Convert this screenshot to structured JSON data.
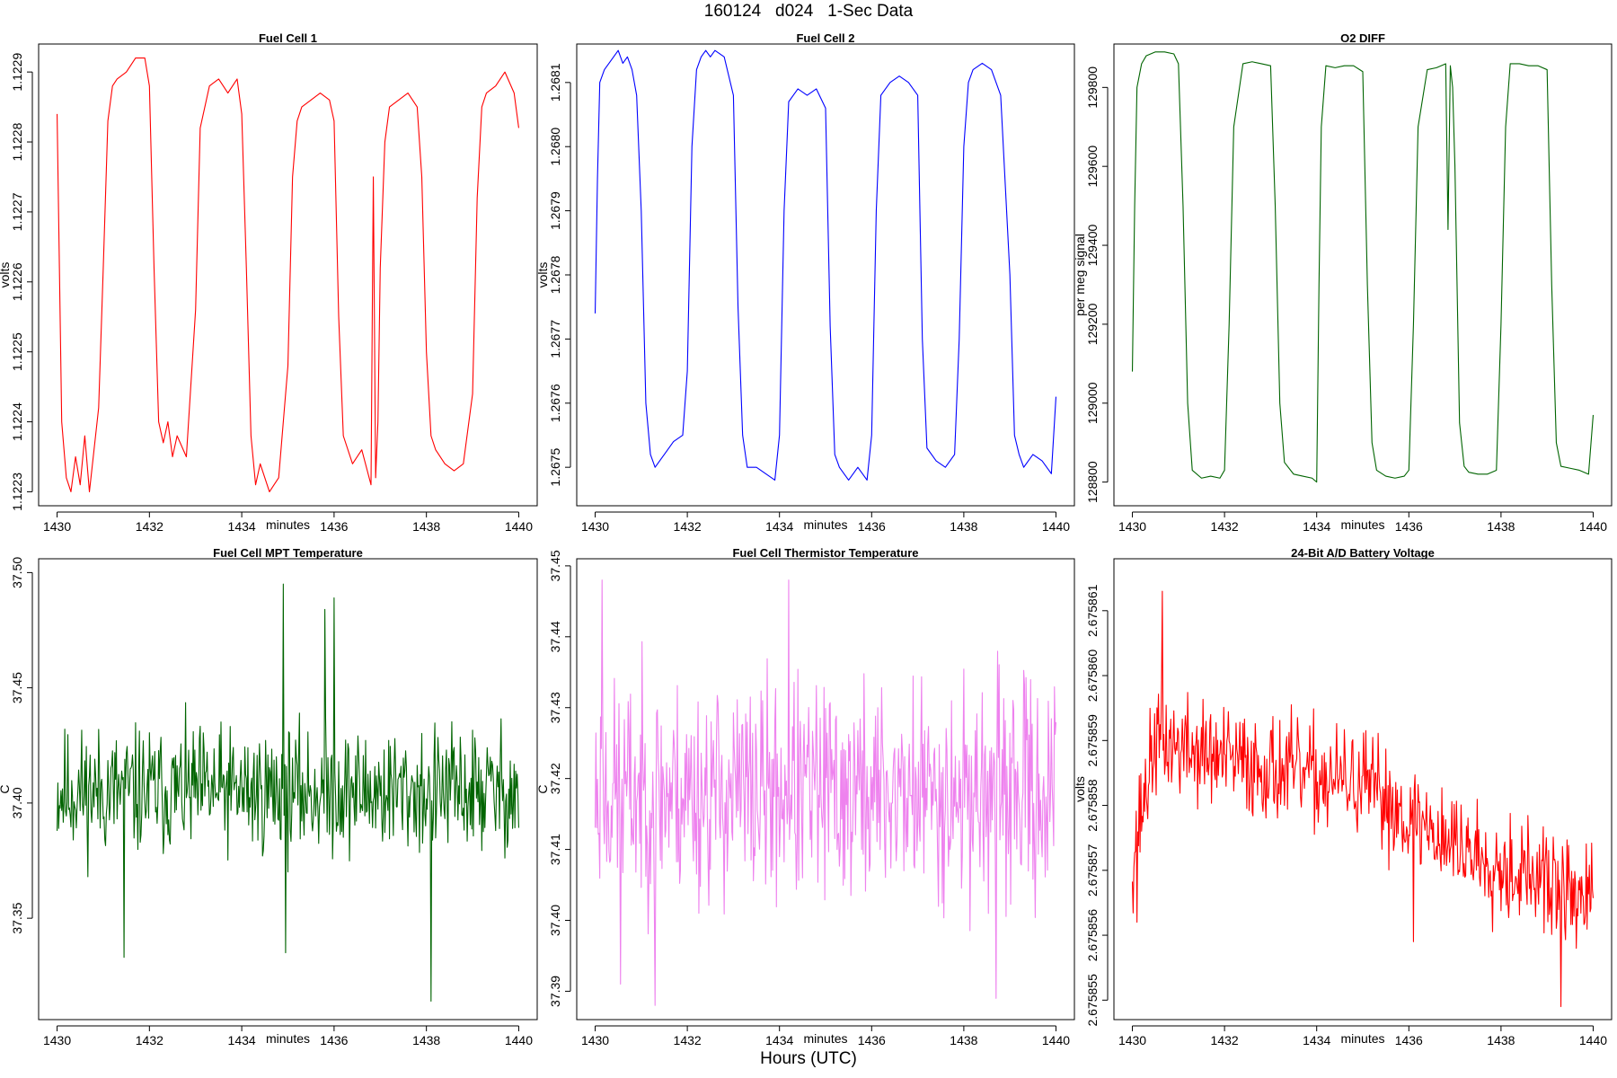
{
  "page": {
    "title": "160124   d024   1-Sec Data",
    "footer": "Hours (UTC)"
  },
  "chart_data": [
    {
      "type": "line",
      "title": "Fuel Cell 1",
      "xlabel": "minutes",
      "ylabel": "volts",
      "color": "#ff0000",
      "xlim": [
        1429.6,
        1440.4
      ],
      "ylim": [
        1.12228,
        1.12294
      ],
      "xticks": [
        1430,
        1432,
        1434,
        1436,
        1438,
        1440
      ],
      "xtick_labels": [
        "1430",
        "1432",
        "1434",
        "1436",
        "1438",
        "1440"
      ],
      "yticks": [
        1.1223,
        1.1224,
        1.1225,
        1.1226,
        1.1227,
        1.1228,
        1.1229
      ],
      "ytick_labels": [
        "1.1223",
        "1.1224",
        "1.1225",
        "1.1226",
        "1.1227",
        "1.1228",
        "1.1229"
      ],
      "series": [
        {
          "name": "Fuel Cell 1",
          "x": [
            1430.0,
            1430.05,
            1430.1,
            1430.2,
            1430.3,
            1430.4,
            1430.5,
            1430.6,
            1430.7,
            1430.8,
            1430.9,
            1431.0,
            1431.1,
            1431.2,
            1431.3,
            1431.5,
            1431.7,
            1431.9,
            1432.0,
            1432.1,
            1432.2,
            1432.3,
            1432.4,
            1432.5,
            1432.6,
            1432.8,
            1433.0,
            1433.1,
            1433.2,
            1433.3,
            1433.5,
            1433.7,
            1433.9,
            1434.0,
            1434.1,
            1434.2,
            1434.3,
            1434.4,
            1434.6,
            1434.8,
            1435.0,
            1435.1,
            1435.2,
            1435.3,
            1435.5,
            1435.7,
            1435.9,
            1436.0,
            1436.1,
            1436.2,
            1436.4,
            1436.6,
            1436.8,
            1436.85,
            1436.9,
            1436.95,
            1437.0,
            1437.1,
            1437.2,
            1437.4,
            1437.6,
            1437.8,
            1437.9,
            1438.0,
            1438.1,
            1438.2,
            1438.4,
            1438.6,
            1438.8,
            1439.0,
            1439.1,
            1439.2,
            1439.3,
            1439.5,
            1439.7,
            1439.9,
            1440.0
          ],
          "y": [
            1.12284,
            1.12262,
            1.1224,
            1.12232,
            1.1223,
            1.12235,
            1.12231,
            1.12238,
            1.1223,
            1.12236,
            1.12242,
            1.12262,
            1.12283,
            1.12288,
            1.12289,
            1.1229,
            1.12292,
            1.12292,
            1.12288,
            1.12262,
            1.1224,
            1.12237,
            1.1224,
            1.12235,
            1.12238,
            1.12235,
            1.12256,
            1.12282,
            1.12285,
            1.12288,
            1.12289,
            1.12287,
            1.12289,
            1.12284,
            1.12262,
            1.12238,
            1.12231,
            1.12234,
            1.1223,
            1.12232,
            1.12248,
            1.12275,
            1.12283,
            1.12285,
            1.12286,
            1.12287,
            1.12286,
            1.12283,
            1.12255,
            1.12238,
            1.12234,
            1.12236,
            1.12231,
            1.12275,
            1.12232,
            1.1224,
            1.12262,
            1.1228,
            1.12285,
            1.12286,
            1.12287,
            1.12285,
            1.12275,
            1.1225,
            1.12238,
            1.12236,
            1.12234,
            1.12233,
            1.12234,
            1.12244,
            1.12272,
            1.12285,
            1.12287,
            1.12288,
            1.1229,
            1.12287,
            1.12282
          ]
        }
      ]
    },
    {
      "type": "line",
      "title": "Fuel Cell 2",
      "xlabel": "minutes",
      "ylabel": "volts",
      "color": "#0000ff",
      "xlim": [
        1429.6,
        1440.4
      ],
      "ylim": [
        1.26744,
        1.26816
      ],
      "xticks": [
        1430,
        1432,
        1434,
        1436,
        1438,
        1440
      ],
      "xtick_labels": [
        "1430",
        "1432",
        "1434",
        "1436",
        "1438",
        "1440"
      ],
      "yticks": [
        1.2675,
        1.2676,
        1.2677,
        1.2678,
        1.2679,
        1.268,
        1.2681
      ],
      "ytick_labels": [
        "1.2675",
        "1.2676",
        "1.2677",
        "1.2678",
        "1.2679",
        "1.2680",
        "1.2681"
      ],
      "series": [
        {
          "name": "Fuel Cell 2",
          "x": [
            1430.0,
            1430.05,
            1430.1,
            1430.2,
            1430.3,
            1430.4,
            1430.5,
            1430.6,
            1430.7,
            1430.8,
            1430.9,
            1431.0,
            1431.1,
            1431.2,
            1431.3,
            1431.5,
            1431.7,
            1431.9,
            1432.0,
            1432.1,
            1432.2,
            1432.3,
            1432.4,
            1432.5,
            1432.6,
            1432.8,
            1433.0,
            1433.1,
            1433.2,
            1433.3,
            1433.5,
            1433.7,
            1433.9,
            1434.0,
            1434.1,
            1434.2,
            1434.3,
            1434.4,
            1434.6,
            1434.8,
            1435.0,
            1435.1,
            1435.2,
            1435.3,
            1435.5,
            1435.7,
            1435.9,
            1436.0,
            1436.1,
            1436.2,
            1436.4,
            1436.6,
            1436.8,
            1437.0,
            1437.1,
            1437.2,
            1437.4,
            1437.6,
            1437.8,
            1437.9,
            1438.0,
            1438.1,
            1438.2,
            1438.4,
            1438.6,
            1438.8,
            1439.0,
            1439.1,
            1439.2,
            1439.3,
            1439.5,
            1439.7,
            1439.9,
            1440.0
          ],
          "y": [
            1.26774,
            1.26795,
            1.2681,
            1.26812,
            1.26813,
            1.26814,
            1.26815,
            1.26813,
            1.26814,
            1.26812,
            1.26808,
            1.2679,
            1.2676,
            1.26752,
            1.2675,
            1.26752,
            1.26754,
            1.26755,
            1.26765,
            1.268,
            1.26812,
            1.26814,
            1.26815,
            1.26814,
            1.26815,
            1.26814,
            1.26808,
            1.26775,
            1.26755,
            1.2675,
            1.2675,
            1.26749,
            1.26748,
            1.26755,
            1.2679,
            1.26807,
            1.26808,
            1.26809,
            1.26808,
            1.26809,
            1.26806,
            1.26772,
            1.26752,
            1.2675,
            1.26748,
            1.2675,
            1.26748,
            1.26755,
            1.2679,
            1.26808,
            1.2681,
            1.26811,
            1.2681,
            1.26808,
            1.2677,
            1.26753,
            1.26751,
            1.2675,
            1.26752,
            1.2677,
            1.268,
            1.2681,
            1.26812,
            1.26813,
            1.26812,
            1.26808,
            1.2678,
            1.26755,
            1.26752,
            1.2675,
            1.26752,
            1.26751,
            1.26749,
            1.26761
          ]
        }
      ]
    },
    {
      "type": "line",
      "title": "O2 DIFF",
      "xlabel": "minutes",
      "ylabel": "per meg signal",
      "color": "#006400",
      "xlim": [
        1429.6,
        1440.4
      ],
      "ylim": [
        128740,
        129910
      ],
      "xticks": [
        1430,
        1432,
        1434,
        1436,
        1438,
        1440
      ],
      "xtick_labels": [
        "1430",
        "1432",
        "1434",
        "1436",
        "1438",
        "1440"
      ],
      "yticks": [
        128800,
        129000,
        129200,
        129400,
        129600,
        129800
      ],
      "ytick_labels": [
        "128800",
        "129000",
        "129200",
        "129400",
        "129600",
        "129800"
      ],
      "series": [
        {
          "name": "O2 DIFF",
          "x": [
            1430.0,
            1430.05,
            1430.1,
            1430.2,
            1430.3,
            1430.5,
            1430.7,
            1430.9,
            1431.0,
            1431.1,
            1431.2,
            1431.3,
            1431.5,
            1431.7,
            1431.9,
            1432.0,
            1432.1,
            1432.2,
            1432.4,
            1432.6,
            1432.8,
            1433.0,
            1433.1,
            1433.2,
            1433.3,
            1433.5,
            1433.7,
            1433.9,
            1434.0,
            1434.05,
            1434.1,
            1434.2,
            1434.4,
            1434.6,
            1434.8,
            1435.0,
            1435.1,
            1435.2,
            1435.3,
            1435.5,
            1435.7,
            1435.9,
            1436.0,
            1436.1,
            1436.2,
            1436.4,
            1436.6,
            1436.8,
            1436.85,
            1436.9,
            1436.95,
            1437.0,
            1437.1,
            1437.2,
            1437.3,
            1437.5,
            1437.7,
            1437.9,
            1438.0,
            1438.1,
            1438.2,
            1438.4,
            1438.6,
            1438.8,
            1439.0,
            1439.1,
            1439.2,
            1439.3,
            1439.5,
            1439.7,
            1439.9,
            1440.0
          ],
          "y": [
            129080,
            129500,
            129800,
            129860,
            129880,
            129890,
            129890,
            129885,
            129860,
            129500,
            129000,
            128830,
            128810,
            128815,
            128810,
            128830,
            129200,
            129700,
            129860,
            129865,
            129860,
            129855,
            129500,
            129000,
            128850,
            128820,
            128815,
            128810,
            128800,
            129300,
            129700,
            129855,
            129850,
            129855,
            129855,
            129840,
            129300,
            128900,
            128830,
            128815,
            128810,
            128815,
            128830,
            129200,
            129700,
            129845,
            129850,
            129860,
            129440,
            129855,
            129800,
            129600,
            128950,
            128840,
            128825,
            128820,
            128820,
            128830,
            129200,
            129700,
            129860,
            129860,
            129855,
            129855,
            129845,
            129300,
            128900,
            128840,
            128835,
            128830,
            128820,
            128970
          ]
        }
      ]
    },
    {
      "type": "line",
      "title": "Fuel Cell MPT Temperature",
      "xlabel": "minutes",
      "ylabel": "C",
      "color": "#006400",
      "xlim": [
        1429.6,
        1440.4
      ],
      "ylim": [
        37.306,
        37.506
      ],
      "xticks": [
        1430,
        1432,
        1434,
        1436,
        1438,
        1440
      ],
      "xtick_labels": [
        "1430",
        "1432",
        "1434",
        "1436",
        "1438",
        "1440"
      ],
      "yticks": [
        37.35,
        37.4,
        37.45,
        37.5
      ],
      "ytick_labels": [
        "37.35",
        "37.40",
        "37.45",
        "37.50"
      ],
      "series": [
        {
          "name": "Fuel Cell MPT Temperature",
          "generate": "noise",
          "base": 37.405,
          "amp": 0.03,
          "seed": 11,
          "spikes": [
            [
              1431.45,
              37.333
            ],
            [
              1434.9,
              37.495
            ],
            [
              1435.8,
              37.484
            ],
            [
              1436.0,
              37.489
            ],
            [
              1438.1,
              37.314
            ],
            [
              1434.95,
              37.335
            ]
          ]
        }
      ]
    },
    {
      "type": "line",
      "title": "Fuel Cell Thermistor Temperature",
      "xlabel": "minutes",
      "ylabel": "C",
      "color": "#ee82ee",
      "xlim": [
        1429.6,
        1440.4
      ],
      "ylim": [
        37.386,
        37.451
      ],
      "xticks": [
        1430,
        1432,
        1434,
        1436,
        1438,
        1440
      ],
      "xtick_labels": [
        "1430",
        "1432",
        "1434",
        "1436",
        "1438",
        "1440"
      ],
      "yticks": [
        37.39,
        37.4,
        37.41,
        37.42,
        37.43,
        37.44,
        37.45
      ],
      "ytick_labels": [
        "37.39",
        "37.40",
        "37.41",
        "37.42",
        "37.43",
        "37.44",
        "37.45"
      ],
      "series": [
        {
          "name": "Fuel Cell Thermistor Temperature",
          "generate": "noise",
          "base": 37.418,
          "amp": 0.017,
          "seed": 23,
          "spikes": [
            [
              1430.15,
              37.448
            ],
            [
              1431.3,
              37.388
            ],
            [
              1434.2,
              37.448
            ],
            [
              1438.7,
              37.389
            ],
            [
              1430.55,
              37.391
            ]
          ]
        }
      ]
    },
    {
      "type": "line",
      "title": "24-Bit A/D Battery Voltage",
      "xlabel": "minutes",
      "ylabel": "volts",
      "color": "#ff0000",
      "xlim": [
        1429.6,
        1440.4
      ],
      "ylim": [
        2.6758547,
        2.6758618
      ],
      "xticks": [
        1430,
        1432,
        1434,
        1436,
        1438,
        1440
      ],
      "xtick_labels": [
        "1430",
        "1432",
        "1434",
        "1436",
        "1438",
        "1440"
      ],
      "yticks": [
        2.675855,
        2.675856,
        2.675857,
        2.675858,
        2.675859,
        2.67586,
        2.675861
      ],
      "ytick_labels": [
        "2.675855",
        "2.675856",
        "2.675857",
        "2.675858",
        "2.675859",
        "2.675860",
        "2.675861"
      ],
      "series": [
        {
          "name": "24-Bit A/D Battery Voltage",
          "generate": "noise",
          "trend": [
            [
              1430.0,
              2.6758572
            ],
            [
              1430.5,
              2.675859
            ],
            [
              1432.0,
              2.6758587
            ],
            [
              1435.0,
              2.6758583
            ],
            [
              1437.0,
              2.6758574
            ],
            [
              1440.0,
              2.6758565
            ]
          ],
          "amp": 9e-07,
          "seed": 37,
          "spikes": [
            [
              1430.1,
              2.6758562
            ],
            [
              1430.65,
              2.6758613
            ],
            [
              1439.3,
              2.6758549
            ],
            [
              1436.1,
              2.6758559
            ]
          ]
        }
      ]
    }
  ]
}
